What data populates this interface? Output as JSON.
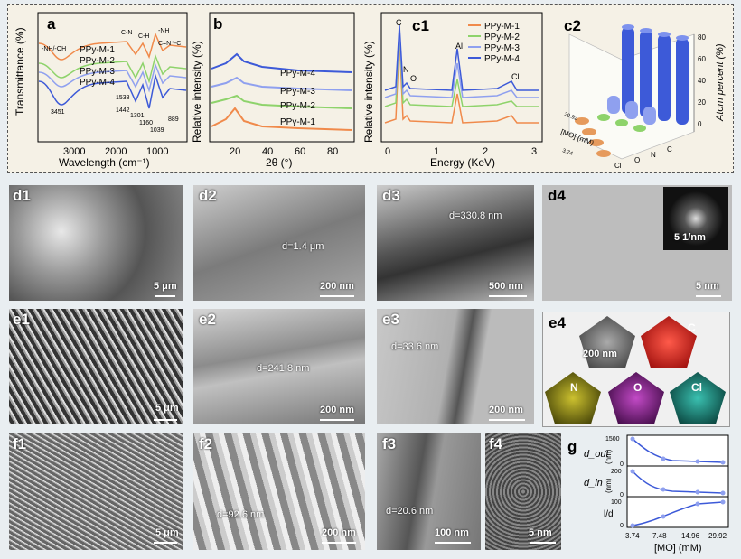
{
  "panels": {
    "a": {
      "label": "a",
      "xlabel": "Wavelength (cm⁻¹)",
      "ylabel": "Transmittance (%)",
      "ticks": [
        "3000",
        "2000",
        "1000"
      ],
      "series": [
        "PPy-M-1",
        "PPy-M-2",
        "PPy-M-3",
        "PPy-M-4"
      ],
      "annot": [
        "-NH/-OH",
        "C-N",
        "C-H",
        "-NH",
        "C=N⁺-C",
        "3451",
        "1538",
        "1442",
        "1301",
        "1160",
        "1039",
        "889"
      ]
    },
    "b": {
      "label": "b",
      "xlabel": "2θ (°)",
      "ylabel": "Relative intensity (%)",
      "ticks": [
        "20",
        "40",
        "60",
        "80"
      ],
      "series": [
        "PPy-M-4",
        "PPy-M-3",
        "PPy-M-2",
        "PPy-M-1"
      ]
    },
    "c1": {
      "label": "c1",
      "xlabel": "Energy (KeV)",
      "ylabel": "Relative intensity (%)",
      "ticks": [
        "0",
        "1",
        "2",
        "3"
      ],
      "peaks": [
        "C",
        "N",
        "O",
        "Al",
        "Cl"
      ],
      "series": [
        "PPy-M-1",
        "PPy-M-2",
        "PPy-M-3",
        "PPy-M-4"
      ]
    },
    "c2": {
      "label": "c2",
      "zlabel": "Atom percent (%)",
      "zticks": [
        "0",
        "20",
        "40",
        "60",
        "80"
      ],
      "xlabel": "[MO] (mM)",
      "xticks": [
        "29.92",
        "14.96",
        "7.48",
        "3.74"
      ],
      "elements": [
        "Cl",
        "O",
        "N",
        "C"
      ]
    },
    "g": {
      "label": "g",
      "rows": [
        {
          "label": "d_out",
          "unit": "(nm)",
          "ticks": [
            "1500",
            "1000",
            "500",
            "0"
          ]
        },
        {
          "label": "d_in",
          "unit": "(nm)",
          "ticks": [
            "200",
            "100",
            "0"
          ]
        },
        {
          "label": "l/d",
          "unit": "",
          "ticks": [
            "100",
            "50",
            "0"
          ]
        }
      ],
      "xlabel": "[MO] (mM)",
      "xticks": [
        "3.74",
        "7.48",
        "14.96",
        "29.92"
      ]
    }
  },
  "images": {
    "d1": {
      "label": "d1",
      "scale": "5 μm"
    },
    "d2": {
      "label": "d2",
      "scale": "200 nm",
      "dim": "d=1.4 μm"
    },
    "d3": {
      "label": "d3",
      "scale": "500 nm",
      "dim": "d=330.8 nm"
    },
    "d4": {
      "label": "d4",
      "scale": "5 nm",
      "inset": "5 1/nm"
    },
    "e1": {
      "label": "e1",
      "scale": "5 μm"
    },
    "e2": {
      "label": "e2",
      "scale": "200 nm",
      "dim": "d=241.8 nm"
    },
    "e3": {
      "label": "e3",
      "scale": "200 nm",
      "dim": "d=33.6 nm"
    },
    "e4": {
      "label": "e4",
      "scale": "200 nm",
      "maps": [
        "C",
        "N",
        "O",
        "Cl"
      ]
    },
    "f1": {
      "label": "f1",
      "scale": "5 μm"
    },
    "f2": {
      "label": "f2",
      "scale": "200 nm",
      "dim": "d=92.6 nm"
    },
    "f3": {
      "label": "f3",
      "scale": "100 nm",
      "dim": "d=20.6 nm"
    },
    "f4": {
      "label": "f4",
      "scale": "5 nm"
    }
  },
  "colors": {
    "m1": "#f08a4b",
    "m2": "#8ed36b",
    "m3": "#8fa0ef",
    "m4": "#3d5ad8"
  }
}
